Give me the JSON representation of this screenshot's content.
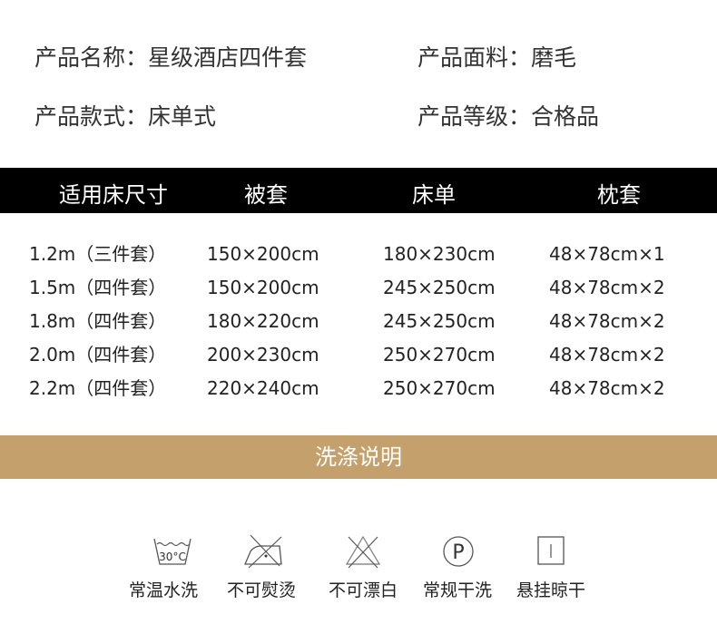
{
  "info": {
    "name": "产品名称：星级酒店四件套",
    "fabric": "产品面料：磨毛",
    "style": "产品款式：床单式",
    "grade": "产品等级：合格品"
  },
  "table": {
    "headers": [
      "适用床尺寸",
      "被套",
      "床单",
      "枕套"
    ],
    "rows": [
      [
        "1.2m（三件套）",
        "150×200cm",
        "180×230cm",
        "48×78cm×1"
      ],
      [
        "1.5m（四件套）",
        "150×200cm",
        "245×250cm",
        "48×78cm×2"
      ],
      [
        "1.8m（四件套）",
        "180×220cm",
        "245×250cm",
        "48×78cm×2"
      ],
      [
        "2.0m（四件套）",
        "200×230cm",
        "250×270cm",
        "48×78cm×2"
      ],
      [
        "2.2m（四件套）",
        "220×240cm",
        "250×270cm",
        "48×78cm×2"
      ]
    ]
  },
  "care": {
    "title": "洗涤说明",
    "accent": "#c4a06d",
    "items": [
      {
        "icon": "wash-30c-icon",
        "temp": "30°C",
        "label": "常温水洗"
      },
      {
        "icon": "no-iron-icon",
        "label": "不可熨烫"
      },
      {
        "icon": "no-bleach-icon",
        "label": "不可漂白"
      },
      {
        "icon": "dry-clean-p-icon",
        "symbol": "P",
        "label": "常规干洗"
      },
      {
        "icon": "line-dry-icon",
        "label": "悬挂晾干"
      }
    ]
  }
}
